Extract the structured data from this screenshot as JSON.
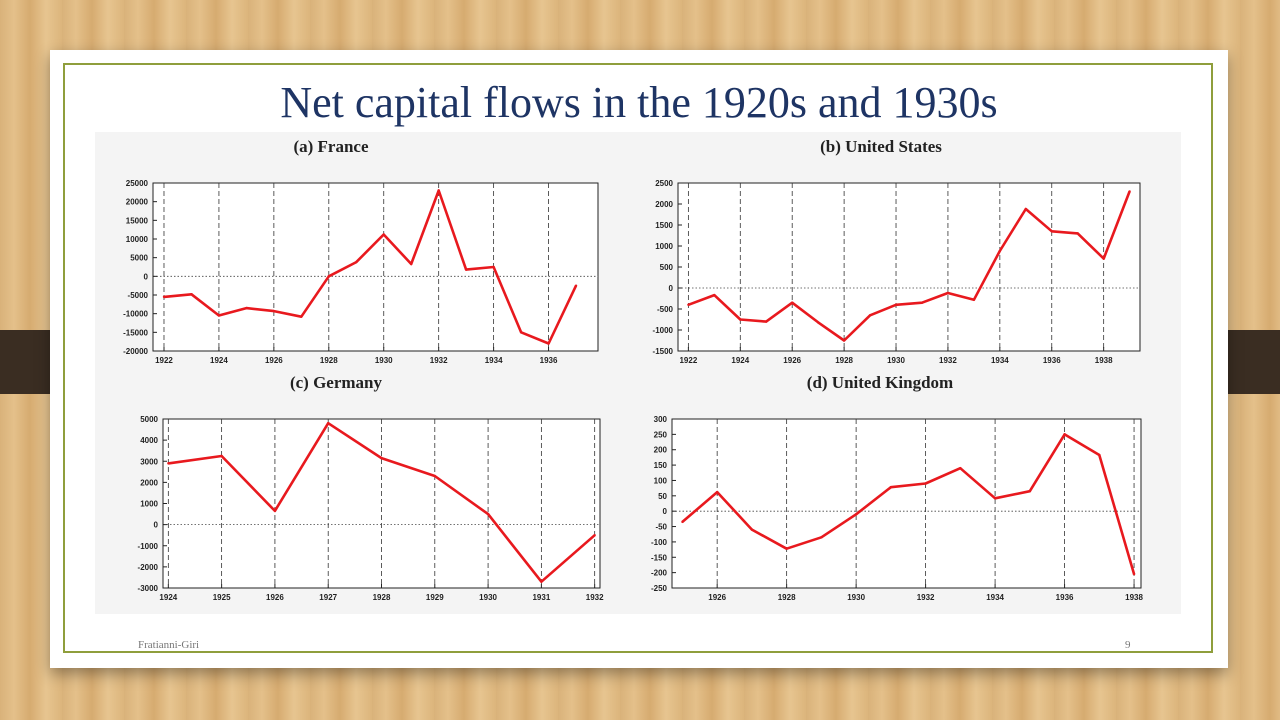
{
  "slide": {
    "title": "Net capital flows in the 1920s and 1930s",
    "footer_left": "Fratianni-Giri",
    "page_number": "9"
  },
  "colors": {
    "line": "#e8191e",
    "title": "#1e3464",
    "frame": "#8f9e3c"
  },
  "chart_data": [
    {
      "type": "line",
      "title": "(a) France",
      "x": [
        1922,
        1923,
        1924,
        1925,
        1926,
        1927,
        1928,
        1929,
        1930,
        1931,
        1932,
        1933,
        1934,
        1935,
        1936,
        1937
      ],
      "values": [
        -5500,
        -4800,
        -10500,
        -8500,
        -9300,
        -10800,
        0,
        3800,
        11200,
        3300,
        23000,
        1800,
        2500,
        -15000,
        -18000,
        -2500
      ],
      "xlim": [
        1921.6,
        1937.8
      ],
      "ylim": [
        -20000,
        25000
      ],
      "xticks": [
        "1922",
        "1924",
        "1926",
        "1928",
        "1930",
        "1932",
        "1934",
        "1936"
      ],
      "xtick_values": [
        1922,
        1924,
        1926,
        1928,
        1930,
        1932,
        1934,
        1936
      ],
      "yticks": [
        "25000",
        "20000",
        "15000",
        "10000",
        "5000",
        "0",
        "-5000",
        "-10000",
        "-15000",
        "-20000"
      ],
      "ytick_values": [
        25000,
        20000,
        15000,
        10000,
        5000,
        0,
        -5000,
        -10000,
        -15000,
        -20000
      ],
      "grid": "vertical dashed, zero line dotted"
    },
    {
      "type": "line",
      "title": "(b) United States",
      "x": [
        1922,
        1923,
        1924,
        1925,
        1926,
        1927,
        1928,
        1929,
        1930,
        1931,
        1932,
        1933,
        1934,
        1935,
        1936,
        1937,
        1938,
        1939
      ],
      "values": [
        -400,
        -170,
        -750,
        -800,
        -350,
        -820,
        -1250,
        -650,
        -400,
        -350,
        -120,
        -280,
        880,
        1880,
        1350,
        1300,
        700,
        2300
      ],
      "xlim": [
        1921.6,
        1939.4
      ],
      "ylim": [
        -1500,
        2500
      ],
      "xticks": [
        "1922",
        "1924",
        "1926",
        "1928",
        "1930",
        "1932",
        "1934",
        "1936",
        "1938"
      ],
      "xtick_values": [
        1922,
        1924,
        1926,
        1928,
        1930,
        1932,
        1934,
        1936,
        1938
      ],
      "yticks": [
        "2500",
        "2000",
        "1500",
        "1000",
        "500",
        "0",
        "-500",
        "-1000",
        "-1500"
      ],
      "ytick_values": [
        2500,
        2000,
        1500,
        1000,
        500,
        0,
        -500,
        -1000,
        -1500
      ],
      "grid": "vertical dashed, zero line dotted"
    },
    {
      "type": "line",
      "title": "(c) Germany",
      "x": [
        1924,
        1925,
        1926,
        1927,
        1928,
        1929,
        1930,
        1931,
        1932
      ],
      "values": [
        2900,
        3250,
        650,
        4800,
        3150,
        2300,
        500,
        -2700,
        -500
      ],
      "xlim": [
        1923.9,
        1932.1
      ],
      "ylim": [
        -3000,
        5000
      ],
      "xticks": [
        "1924",
        "1925",
        "1926",
        "1927",
        "1928",
        "1929",
        "1930",
        "1931",
        "1932"
      ],
      "xtick_values": [
        1924,
        1925,
        1926,
        1927,
        1928,
        1929,
        1930,
        1931,
        1932
      ],
      "yticks": [
        "5000",
        "4000",
        "3000",
        "2000",
        "1000",
        "0",
        "-1000",
        "-2000",
        "-3000"
      ],
      "ytick_values": [
        5000,
        4000,
        3000,
        2000,
        1000,
        0,
        -1000,
        -2000,
        -3000
      ],
      "grid": "vertical dashed, zero line dotted"
    },
    {
      "type": "line",
      "title": "(d) United Kingdom",
      "x": [
        1925,
        1926,
        1927,
        1928,
        1929,
        1930,
        1931,
        1932,
        1933,
        1934,
        1935,
        1936,
        1937,
        1938
      ],
      "values": [
        -35,
        62,
        -60,
        -122,
        -85,
        -10,
        78,
        90,
        140,
        42,
        65,
        250,
        183,
        -205
      ],
      "xlim": [
        1924.7,
        1938.2
      ],
      "ylim": [
        -250,
        300
      ],
      "xticks": [
        "1926",
        "1928",
        "1930",
        "1932",
        "1934",
        "1936",
        "1938"
      ],
      "xtick_values": [
        1926,
        1928,
        1930,
        1932,
        1934,
        1936,
        1938
      ],
      "yticks": [
        "300",
        "250",
        "200",
        "150",
        "100",
        "50",
        "0",
        "-50",
        "-100",
        "-150",
        "-200",
        "-250"
      ],
      "ytick_values": [
        300,
        250,
        200,
        150,
        100,
        50,
        0,
        -50,
        -100,
        -150,
        -200,
        -250
      ],
      "grid": "vertical dashed, zero line dotted"
    }
  ]
}
